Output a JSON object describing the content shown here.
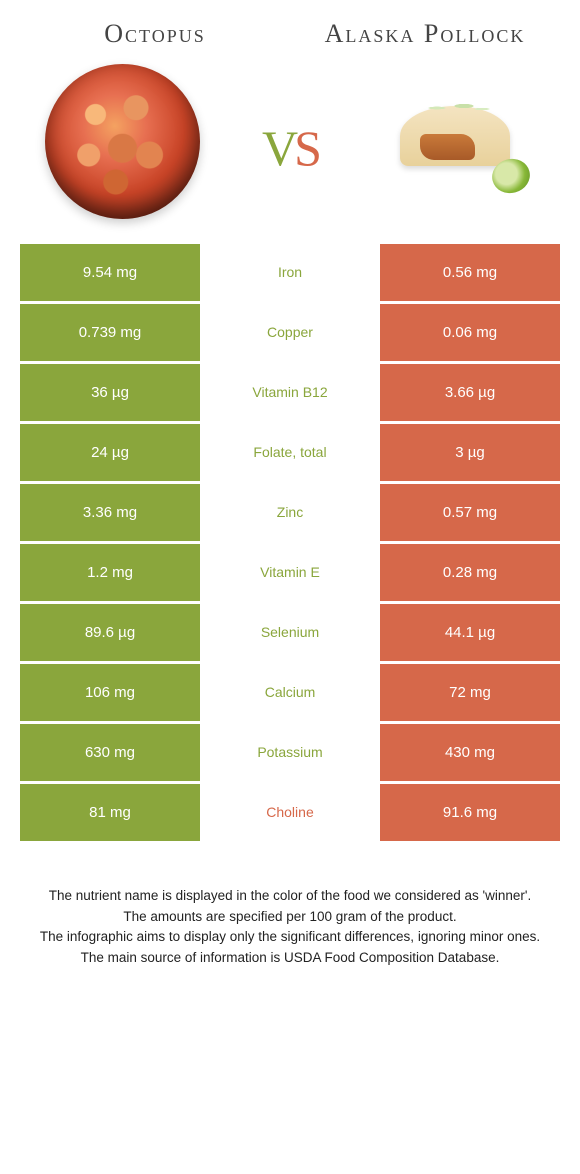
{
  "header": {
    "left_title": "Octopus",
    "right_title": "Alaska Pollock"
  },
  "vs": {
    "v_color": "#8aa63c",
    "s_color": "#d6684a"
  },
  "colors": {
    "left_cell": "#8aa63c",
    "right_cell": "#d6684a",
    "winner_left_text": "#8aa63c",
    "winner_right_text": "#d6684a"
  },
  "rows": [
    {
      "nutrient": "Iron",
      "left": "9.54 mg",
      "right": "0.56 mg",
      "winner": "left"
    },
    {
      "nutrient": "Copper",
      "left": "0.739 mg",
      "right": "0.06 mg",
      "winner": "left"
    },
    {
      "nutrient": "Vitamin B12",
      "left": "36 µg",
      "right": "3.66 µg",
      "winner": "left"
    },
    {
      "nutrient": "Folate, total",
      "left": "24 µg",
      "right": "3 µg",
      "winner": "left"
    },
    {
      "nutrient": "Zinc",
      "left": "3.36 mg",
      "right": "0.57 mg",
      "winner": "left"
    },
    {
      "nutrient": "Vitamin E",
      "left": "1.2 mg",
      "right": "0.28 mg",
      "winner": "left"
    },
    {
      "nutrient": "Selenium",
      "left": "89.6 µg",
      "right": "44.1 µg",
      "winner": "left"
    },
    {
      "nutrient": "Calcium",
      "left": "106 mg",
      "right": "72 mg",
      "winner": "left"
    },
    {
      "nutrient": "Potassium",
      "left": "630 mg",
      "right": "430 mg",
      "winner": "left"
    },
    {
      "nutrient": "Choline",
      "left": "81 mg",
      "right": "91.6 mg",
      "winner": "right"
    }
  ],
  "notes": [
    "The nutrient name is displayed in the color of the food we considered as 'winner'.",
    "The amounts are specified per 100 gram of the product.",
    "The infographic aims to display only the significant differences, ignoring minor ones.",
    "The main source of information is USDA Food Composition Database."
  ]
}
